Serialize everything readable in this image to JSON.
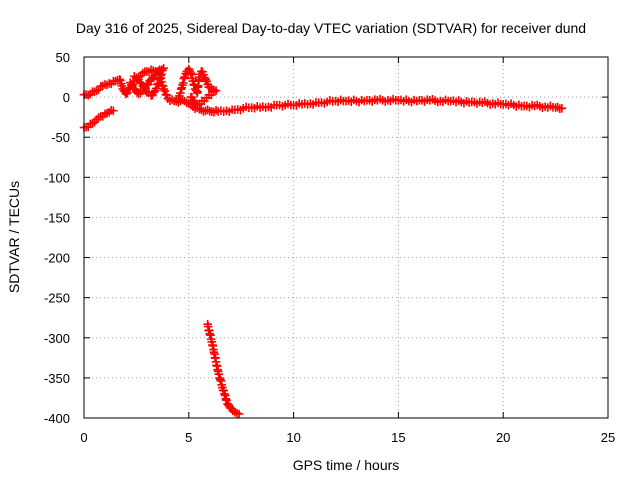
{
  "chart_data": {
    "type": "scatter",
    "title": "Day 316 of 2025, Sidereal Day-to-day VTEC variation (SDTVAR) for receiver dund",
    "xlabel": "GPS time / hours",
    "ylabel": "SDTVAR / TECUs",
    "xlim": [
      0,
      25
    ],
    "ylim": [
      -400,
      50
    ],
    "xticks": [
      0,
      5,
      10,
      15,
      20,
      25
    ],
    "yticks": [
      50,
      0,
      -50,
      -100,
      -150,
      -200,
      -250,
      -300,
      -350,
      -400
    ],
    "grid": true,
    "marker": "plus",
    "color": "#ff0000",
    "series": [
      {
        "name": "main-trace",
        "x": [
          0.0,
          0.3,
          0.6,
          0.9,
          1.2,
          1.5,
          1.7,
          1.8,
          1.9,
          2.0,
          2.2,
          2.4,
          2.6,
          2.8,
          3.0,
          3.2,
          3.4,
          3.6,
          3.8,
          4.0,
          4.3,
          4.6,
          4.8,
          5.0,
          5.2,
          5.5,
          5.8,
          6.1,
          6.4,
          6.8,
          7.2,
          7.6,
          8.0,
          8.4,
          8.8,
          9.2,
          9.6,
          10.0,
          10.4,
          10.8,
          11.2,
          11.6,
          12.0,
          12.5,
          13.0,
          13.5,
          14.0,
          14.5,
          15.0,
          15.5,
          16.0,
          16.5,
          17.0,
          17.5,
          18.0,
          18.5,
          19.0,
          19.5,
          20.0,
          20.5,
          21.0,
          21.5,
          22.0,
          22.5,
          22.8
        ],
        "y": [
          3,
          4,
          8,
          14,
          17,
          20,
          22,
          14,
          8,
          4,
          12,
          20,
          25,
          30,
          32,
          34,
          32,
          28,
          10,
          -2,
          -5,
          -5,
          -5,
          -8,
          -12,
          -15,
          -17,
          -18,
          -18,
          -17,
          -16,
          -14,
          -13,
          -13,
          -12,
          -10,
          -10,
          -10,
          -9,
          -8,
          -7,
          -6,
          -5,
          -5,
          -5,
          -4,
          -4,
          -4,
          -4,
          -5,
          -4,
          -4,
          -5,
          -5,
          -6,
          -6,
          -7,
          -8,
          -9,
          -10,
          -11,
          -11,
          -12,
          -13,
          -14
        ]
      },
      {
        "name": "oscillation-loop-a",
        "x": [
          2.2,
          2.4,
          2.6,
          2.8,
          3.0,
          3.2,
          3.4,
          3.6,
          3.8,
          3.6,
          3.4,
          3.2,
          3.0,
          2.8,
          2.6,
          2.4
        ],
        "y": [
          18,
          10,
          4,
          8,
          15,
          22,
          28,
          34,
          36,
          22,
          8,
          2,
          6,
          14,
          22,
          26
        ]
      },
      {
        "name": "oscillation-loop-b",
        "x": [
          4.5,
          4.6,
          4.7,
          4.8,
          4.9,
          5.0,
          5.1,
          5.2,
          5.3,
          5.4,
          5.5,
          5.6,
          5.7,
          5.8,
          5.9,
          6.0,
          6.1,
          6.2,
          6.3,
          5.4,
          5.3,
          5.2,
          5.1
        ],
        "y": [
          -2,
          5,
          15,
          25,
          32,
          35,
          30,
          20,
          10,
          5,
          25,
          32,
          28,
          22,
          16,
          12,
          10,
          9,
          8,
          -10,
          -8,
          -4,
          0
        ]
      },
      {
        "name": "lower-start-segment",
        "x": [
          0.0,
          0.2,
          0.4,
          0.6,
          0.8,
          1.0,
          1.2,
          1.4
        ],
        "y": [
          -38,
          -37,
          -33,
          -28,
          -24,
          -21,
          -19,
          -17
        ]
      },
      {
        "name": "outlier-plunge",
        "x": [
          5.9,
          6.0,
          6.1,
          6.2,
          6.3,
          6.4,
          6.5,
          6.6,
          6.7,
          6.8,
          6.9,
          7.0,
          7.1,
          7.2,
          7.3,
          7.4
        ],
        "y": [
          -283,
          -295,
          -305,
          -318,
          -330,
          -342,
          -352,
          -362,
          -370,
          -378,
          -384,
          -388,
          -391,
          -393,
          -394,
          -395
        ]
      }
    ]
  }
}
